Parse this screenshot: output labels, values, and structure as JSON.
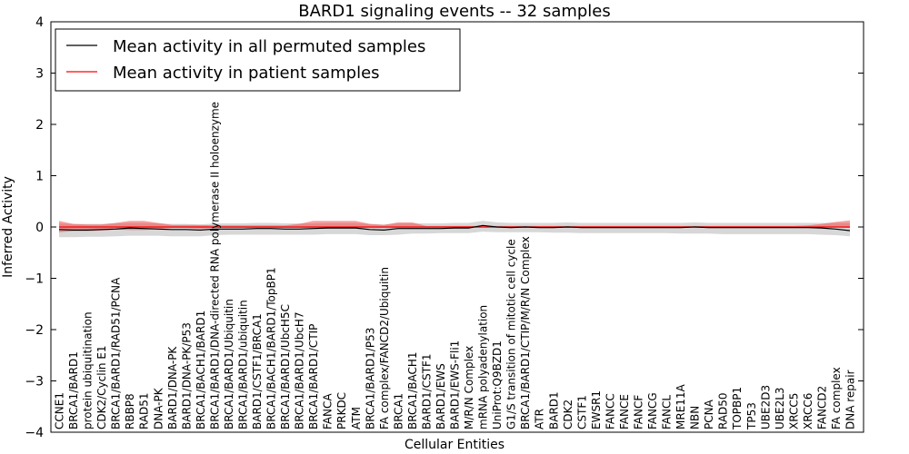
{
  "chart_data": {
    "type": "line",
    "title": "BARD1 signaling events -- 32 samples",
    "xlabel": "Cellular Entities",
    "ylabel": "Inferred Activity",
    "ylim": [
      -4,
      4
    ],
    "yticks": [
      "4",
      "3",
      "2",
      "1",
      "0",
      "−1",
      "−2",
      "−3",
      "−4"
    ],
    "legend_position": "top-left",
    "grid": false,
    "categories": [
      "CCNE1",
      "BRCA1/BARD1",
      "protein ubiquitination",
      "CDK2/Cyclin E1",
      "BRCA1/BARD1/RAD51/PCNA",
      "RBBP8",
      "RAD51",
      "DNA-PK",
      "BARD1/DNA-PK",
      "BARD1/DNA-PK/P53",
      "BRCA1/BACH1/BARD1",
      "BRCA1/BARD1/DNA-directed RNA polymerase II holoenzyme",
      "BRCA1/BARD1/Ubiquitin",
      "BRCA1/BARD1/ubiquitin",
      "BARD1/CSTF1/BRCA1",
      "BRCA1/BACH1/BARD1/TopBP1",
      "BRCA1/BARD1/UbcH5C",
      "BRCA1/BARD1/UbcH7",
      "BRCA1/BARD1/CTIP",
      "FANCA",
      "PRKDC",
      "ATM",
      "BRCA1/BARD1/P53",
      "FA complex/FANCD2/Ubiquitin",
      "BRCA1",
      "BRCA1/BACH1",
      "BARD1/CSTF1",
      "BARD1/EWS",
      "BARD1/EWS-Fli1",
      "M/R/N Complex",
      "mRNA polyadenylation",
      "UniProt:Q9BZD1",
      "G1/S transition of mitotic cell cycle",
      "BRCA1/BARD1/CTIP/M/R/N Complex",
      "ATR",
      "BARD1",
      "CDK2",
      "CSTF1",
      "EWSR1",
      "FANCC",
      "FANCE",
      "FANCF",
      "FANCG",
      "FANCL",
      "MRE11A",
      "NBN",
      "PCNA",
      "RAD50",
      "TOPBP1",
      "TP53",
      "UBE2D3",
      "UBE2L3",
      "XRCC5",
      "XRCC6",
      "FANCD2",
      "FA complex",
      "DNA repair"
    ],
    "series": [
      {
        "name": "Mean activity in all permuted samples",
        "color": "#000000",
        "values": [
          -0.05,
          -0.06,
          -0.06,
          -0.05,
          -0.04,
          -0.02,
          -0.03,
          -0.04,
          -0.05,
          -0.05,
          -0.06,
          -0.04,
          -0.04,
          -0.04,
          -0.03,
          -0.03,
          -0.04,
          -0.04,
          -0.03,
          -0.02,
          -0.02,
          -0.02,
          -0.05,
          -0.06,
          -0.03,
          -0.03,
          -0.03,
          -0.03,
          -0.02,
          -0.02,
          0.03,
          0.0,
          -0.01,
          0.0,
          -0.01,
          -0.01,
          0.0,
          -0.01,
          -0.01,
          -0.01,
          -0.01,
          -0.01,
          -0.01,
          -0.01,
          -0.01,
          0.0,
          -0.01,
          -0.01,
          -0.01,
          -0.01,
          -0.01,
          -0.01,
          -0.01,
          -0.01,
          -0.02,
          -0.04,
          -0.07
        ],
        "band_low": [
          -0.2,
          -0.2,
          -0.19,
          -0.19,
          -0.18,
          -0.17,
          -0.17,
          -0.17,
          -0.18,
          -0.18,
          -0.18,
          -0.16,
          -0.15,
          -0.15,
          -0.15,
          -0.15,
          -0.15,
          -0.15,
          -0.15,
          -0.14,
          -0.14,
          -0.14,
          -0.16,
          -0.16,
          -0.15,
          -0.13,
          -0.13,
          -0.12,
          -0.12,
          -0.12,
          -0.09,
          -0.1,
          -0.1,
          -0.1,
          -0.1,
          -0.11,
          -0.11,
          -0.12,
          -0.12,
          -0.12,
          -0.12,
          -0.12,
          -0.12,
          -0.12,
          -0.13,
          -0.13,
          -0.13,
          -0.14,
          -0.14,
          -0.14,
          -0.14,
          -0.14,
          -0.14,
          -0.14,
          -0.15,
          -0.16,
          -0.18
        ],
        "band_high": [
          0.07,
          0.06,
          0.06,
          0.06,
          0.07,
          0.08,
          0.08,
          0.07,
          0.06,
          0.06,
          0.05,
          0.07,
          0.07,
          0.07,
          0.08,
          0.08,
          0.07,
          0.07,
          0.07,
          0.08,
          0.08,
          0.08,
          0.06,
          0.05,
          0.07,
          0.07,
          0.07,
          0.07,
          0.08,
          0.08,
          0.12,
          0.09,
          0.08,
          0.08,
          0.08,
          0.08,
          0.09,
          0.08,
          0.08,
          0.08,
          0.08,
          0.08,
          0.08,
          0.08,
          0.08,
          0.09,
          0.08,
          0.08,
          0.08,
          0.08,
          0.08,
          0.08,
          0.08,
          0.08,
          0.08,
          0.08,
          0.08
        ]
      },
      {
        "name": "Mean activity in patient samples",
        "color": "#ff0000",
        "values": [
          0.0,
          0.0,
          0.0,
          0.0,
          0.0,
          0.0,
          0.0,
          0.0,
          0.0,
          0.0,
          0.0,
          0.0,
          0.0,
          0.0,
          0.0,
          0.0,
          0.0,
          0.0,
          0.0,
          0.0,
          0.0,
          0.0,
          0.0,
          0.0,
          0.0,
          0.0,
          0.0,
          0.0,
          0.0,
          0.0,
          0.0,
          0.0,
          0.0,
          0.0,
          0.0,
          0.0,
          0.0,
          0.0,
          0.0,
          0.0,
          0.0,
          0.0,
          0.0,
          0.0,
          0.0,
          0.0,
          0.0,
          0.0,
          0.0,
          0.0,
          0.0,
          0.0,
          0.0,
          0.0,
          0.0,
          0.0,
          0.0
        ],
        "band_low": [
          -0.1,
          -0.08,
          -0.08,
          -0.07,
          -0.05,
          -0.06,
          -0.06,
          -0.04,
          -0.02,
          -0.02,
          -0.03,
          -0.02,
          -0.02,
          -0.02,
          -0.02,
          -0.02,
          -0.02,
          -0.02,
          -0.02,
          -0.02,
          -0.02,
          -0.02,
          -0.02,
          -0.02,
          -0.02,
          -0.02,
          -0.02,
          -0.02,
          -0.01,
          -0.01,
          -0.01,
          -0.01,
          -0.01,
          -0.01,
          -0.01,
          -0.01,
          -0.01,
          -0.01,
          -0.01,
          -0.01,
          -0.01,
          -0.01,
          -0.01,
          -0.01,
          -0.01,
          -0.01,
          -0.01,
          -0.01,
          -0.01,
          -0.01,
          -0.01,
          -0.01,
          -0.01,
          -0.01,
          -0.01,
          -0.01,
          -0.02
        ],
        "band_high": [
          0.12,
          0.06,
          0.05,
          0.05,
          0.08,
          0.12,
          0.12,
          0.08,
          0.04,
          0.04,
          0.04,
          0.03,
          0.03,
          0.03,
          0.03,
          0.03,
          0.03,
          0.06,
          0.12,
          0.12,
          0.12,
          0.12,
          0.06,
          0.04,
          0.09,
          0.09,
          0.02,
          0.02,
          0.02,
          0.02,
          0.02,
          0.02,
          0.02,
          0.02,
          0.02,
          0.02,
          0.02,
          0.02,
          0.02,
          0.02,
          0.02,
          0.02,
          0.02,
          0.02,
          0.02,
          0.02,
          0.02,
          0.02,
          0.02,
          0.02,
          0.02,
          0.02,
          0.02,
          0.03,
          0.06,
          0.1,
          0.13
        ]
      }
    ]
  }
}
